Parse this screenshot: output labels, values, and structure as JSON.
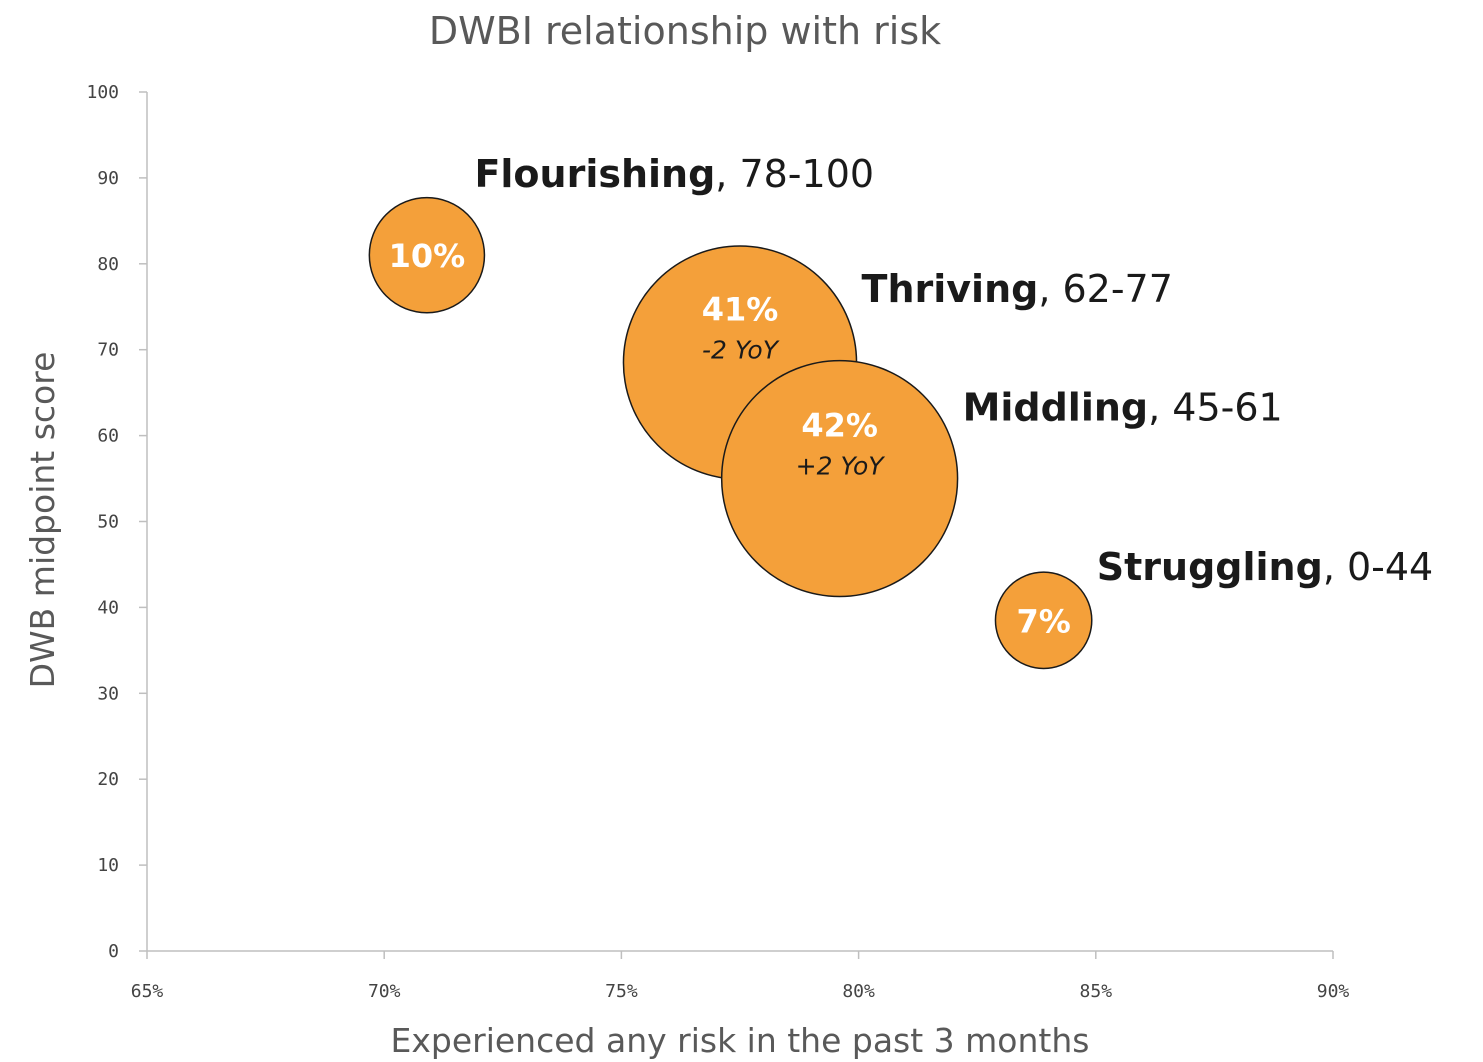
{
  "chart_data": {
    "type": "scatter",
    "subtype": "bubble",
    "title": "DWBI relationship with risk",
    "xlabel": "Experienced any risk in the past 3 months",
    "ylabel": "DWB midpoint score",
    "xlim": [
      65,
      90
    ],
    "ylim": [
      0,
      100
    ],
    "x_ticks": [
      "65%",
      "70%",
      "75%",
      "80%",
      "85%",
      "90%"
    ],
    "y_ticks": [
      "0",
      "10",
      "20",
      "30",
      "40",
      "50",
      "60",
      "70",
      "80",
      "90",
      "100"
    ],
    "grid": false,
    "bubble_color": "#F4A03A",
    "bubble_edge_color": "#1a1a1a",
    "points": [
      {
        "name": "Flourishing",
        "range": ", 78-100",
        "x": 70.9,
        "y": 81,
        "size_share": 10,
        "pct_label": "10%",
        "yoy": ""
      },
      {
        "name": "Thriving",
        "range": ", 62-77",
        "x": 77.5,
        "y": 68.5,
        "size_share": 41,
        "pct_label": "41%",
        "yoy": "-2 YoY"
      },
      {
        "name": "Middling",
        "range": ", 45-61",
        "x": 79.6,
        "y": 55,
        "size_share": 42,
        "pct_label": "42%",
        "yoy": "+2 YoY"
      },
      {
        "name": "Struggling",
        "range": ", 0-44",
        "x": 83.9,
        "y": 38.5,
        "size_share": 7,
        "pct_label": "7%",
        "yoy": ""
      }
    ]
  }
}
